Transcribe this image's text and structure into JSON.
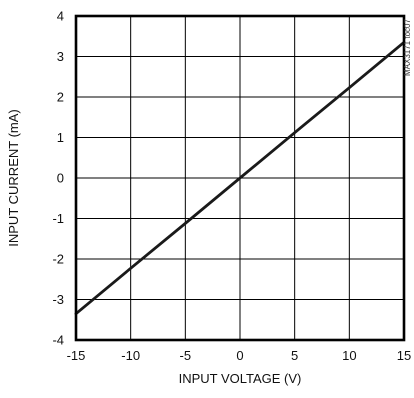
{
  "chart_data": {
    "type": "line",
    "title": "",
    "xlabel": "INPUT VOLTAGE (V)",
    "ylabel": "INPUT CURRENT (mA)",
    "xlim": [
      -15,
      15
    ],
    "ylim": [
      -4,
      4
    ],
    "xticks": [
      -15,
      -10,
      -5,
      0,
      5,
      10,
      15
    ],
    "yticks": [
      -4,
      -3,
      -2,
      -1,
      0,
      1,
      2,
      3,
      4
    ],
    "xtick_labels": [
      "-15",
      "-10",
      "-5",
      "0",
      "5",
      "10",
      "15"
    ],
    "ytick_labels": [
      "-4",
      "-3",
      "-2",
      "-1",
      "0",
      "1",
      "2",
      "3",
      "4"
    ],
    "grid": true,
    "legend": "none",
    "series": [
      {
        "x": [
          -15,
          -10,
          -5,
          0,
          5,
          10,
          15
        ],
        "y": [
          -3.35,
          -2.23,
          -1.12,
          0,
          1.12,
          2.23,
          3.35
        ]
      }
    ],
    "annotation": "MAX3171 toc07",
    "colors": {
      "line": "#1a1a1a",
      "grid": "#000000",
      "frame": "#000000"
    }
  }
}
